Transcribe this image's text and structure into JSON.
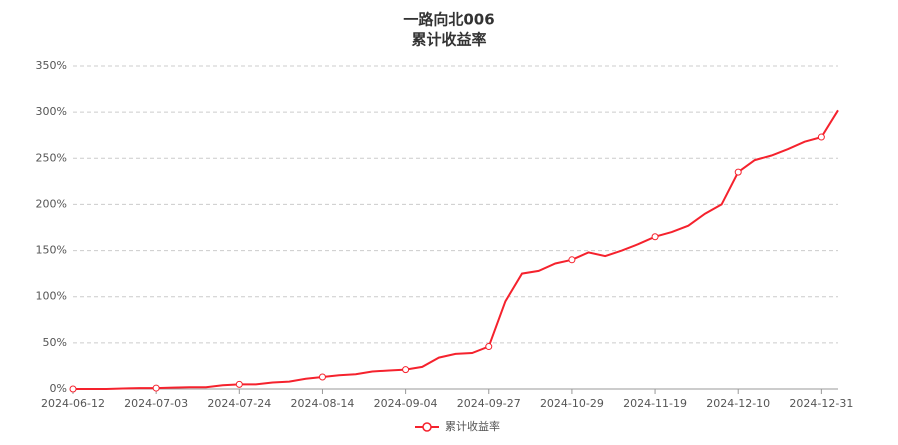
{
  "chart_data": {
    "type": "line",
    "title": "一路向北006",
    "subtitle": "累计收益率",
    "categories": [
      "2024-06-12",
      null,
      null,
      null,
      null,
      "2024-07-03",
      null,
      null,
      null,
      null,
      "2024-07-24",
      null,
      null,
      null,
      null,
      "2024-08-14",
      null,
      null,
      null,
      null,
      "2024-09-04",
      null,
      null,
      null,
      null,
      "2024-09-27",
      null,
      null,
      null,
      null,
      "2024-10-29",
      null,
      null,
      null,
      null,
      "2024-11-19",
      null,
      null,
      null,
      null,
      "2024-12-10",
      null,
      null,
      null,
      null,
      "2024-12-31",
      null
    ],
    "series": [
      {
        "name": "累计收益率",
        "color": "#f5222d",
        "values": [
          0,
          0,
          0,
          0.5,
          1,
          1,
          1.5,
          2,
          2,
          4,
          5,
          5,
          7,
          8,
          11,
          13,
          15,
          16,
          19,
          20,
          21,
          24,
          34,
          38,
          39,
          46,
          95,
          125,
          128,
          136,
          140,
          148,
          144,
          150,
          157,
          165,
          170,
          177,
          190,
          200,
          235,
          248,
          253,
          260,
          268,
          273,
          302
        ]
      }
    ],
    "ylim": [
      0,
      350
    ],
    "yticks": [
      {
        "value": 0,
        "label": "0%"
      },
      {
        "value": 50,
        "label": "50%"
      },
      {
        "value": 100,
        "label": "100%"
      },
      {
        "value": 150,
        "label": "150%"
      },
      {
        "value": 200,
        "label": "200%"
      },
      {
        "value": 250,
        "label": "250%"
      },
      {
        "value": 300,
        "label": "300%"
      },
      {
        "value": 350,
        "label": "350%"
      }
    ],
    "grid": true
  }
}
